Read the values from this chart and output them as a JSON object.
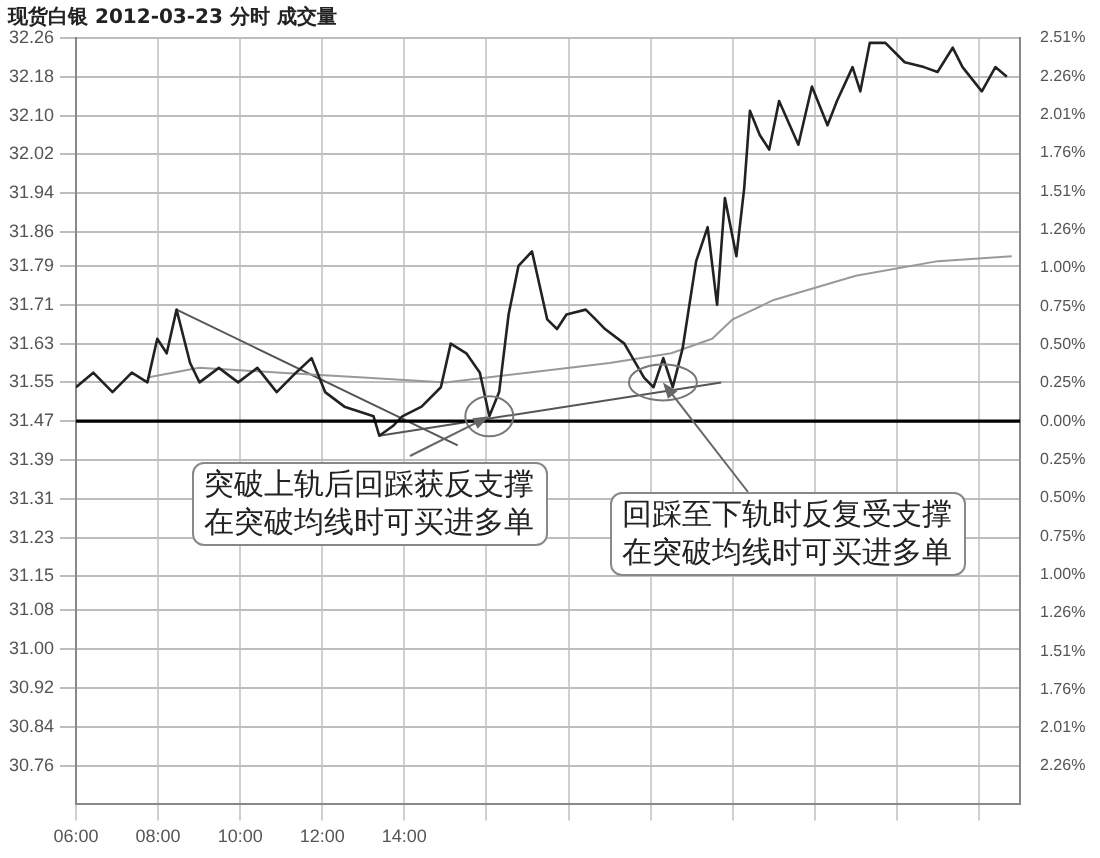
{
  "chart_data": {
    "type": "line",
    "title": "现货白银 2012-03-23 分时 成交量",
    "xlim": [
      6,
      29
    ],
    "xticks": [
      {
        "value": 6,
        "label": "06:00"
      },
      {
        "value": 8,
        "label": "08:00"
      },
      {
        "value": 10,
        "label": "10:00"
      },
      {
        "value": 12,
        "label": "12:00"
      },
      {
        "value": 14,
        "label": "14:00"
      },
      {
        "value": 16,
        "label": null
      },
      {
        "value": 18,
        "label": null
      },
      {
        "value": 20,
        "label": null
      },
      {
        "value": 22,
        "label": null
      },
      {
        "value": 24,
        "label": null
      },
      {
        "value": 26,
        "label": null
      },
      {
        "value": 28,
        "label": null
      }
    ],
    "ylim": [
      30.68,
      32.26
    ],
    "yticks": [
      30.76,
      30.84,
      30.92,
      {
        "value": 31,
        "label": "31.00"
      },
      31.08,
      31.15,
      31.23,
      31.31,
      31.39,
      31.47,
      31.55,
      31.63,
      31.71,
      31.79,
      31.86,
      31.94,
      32.02,
      {
        "value": 32.1,
        "label": "32.10"
      },
      32.18,
      32.26
    ],
    "y2lim": [
      -2.51,
      2.51
    ],
    "y2ticks": [
      {
        "value": 2.51,
        "label": "2.51%"
      },
      {
        "value": 2.259,
        "label": "2.26%"
      },
      {
        "value": 2.008,
        "label": "2.01%"
      },
      {
        "value": 1.757,
        "label": "1.76%"
      },
      {
        "value": 1.506,
        "label": "1.51%"
      },
      {
        "value": 1.255,
        "label": "1.26%"
      },
      {
        "value": 1.004,
        "label": "1.00%"
      },
      {
        "value": 0.753,
        "label": "0.75%"
      },
      {
        "value": 0.502,
        "label": "0.50%"
      },
      {
        "value": 0.251,
        "label": "0.25%"
      },
      {
        "value": 0,
        "label": "0.00%"
      },
      {
        "value": -0.251,
        "label": "0.25%"
      },
      {
        "value": -0.502,
        "label": "0.50%"
      },
      {
        "value": -0.753,
        "label": "0.75%"
      },
      {
        "value": -1.004,
        "label": "1.00%"
      },
      {
        "value": -1.255,
        "label": "1.26%"
      },
      {
        "value": -1.506,
        "label": "1.51%"
      },
      {
        "value": -1.757,
        "label": "1.76%"
      },
      {
        "value": -2.008,
        "label": "2.01%"
      },
      {
        "value": -2.259,
        "label": "2.26%"
      }
    ],
    "grid": true,
    "legend": false,
    "marker": "none",
    "line_style": "solid",
    "ref_lines": [
      {
        "axis": "y",
        "value": 31.47,
        "color": "#000000"
      }
    ],
    "annotations": [
      {
        "text": "突破上轨后回踩获反支撑在突破均线时可买进多单",
        "x": 16.07,
        "y": 31.48
      },
      {
        "text": "回踩至下轨时反复受支撑在突破均线时可买进多单",
        "x": 20.3,
        "y": 31.55
      }
    ],
    "series": [
      {
        "color": "#222222",
        "x": [
          6.0,
          6.42,
          6.89,
          7.36,
          7.74,
          7.98,
          8.21,
          8.45,
          8.78,
          9.01,
          9.48,
          9.95,
          10.42,
          10.89,
          11.36,
          11.74,
          12.07,
          12.54,
          13.25,
          13.39,
          13.72,
          13.95,
          14.42,
          14.89,
          15.13,
          15.51,
          15.84,
          16.07,
          16.31,
          16.54,
          16.78,
          17.11,
          17.48,
          17.72,
          17.95,
          18.42,
          18.66,
          18.89,
          19.36,
          19.84,
          20.07,
          20.31,
          20.54,
          20.78,
          21.11,
          21.39,
          21.62,
          21.81,
          22.09,
          22.28,
          22.42,
          22.66,
          22.89,
          23.13,
          23.6,
          23.93,
          24.31,
          24.54,
          24.92,
          25.11,
          25.34,
          25.72,
          26.19,
          26.66,
          26.99,
          27.36,
          27.6,
          28.07,
          28.4,
          28.68
        ],
        "values": [
          31.54,
          31.57,
          31.53,
          31.57,
          31.55,
          31.64,
          31.61,
          31.7,
          31.59,
          31.55,
          31.58,
          31.55,
          31.58,
          31.53,
          31.57,
          31.6,
          31.53,
          31.5,
          31.48,
          31.44,
          31.46,
          31.48,
          31.5,
          31.54,
          31.63,
          31.61,
          31.57,
          31.48,
          31.53,
          31.69,
          31.79,
          31.82,
          31.68,
          31.66,
          31.69,
          31.7,
          31.68,
          31.66,
          31.63,
          31.56,
          31.54,
          31.6,
          31.54,
          31.62,
          31.8,
          31.87,
          31.71,
          31.93,
          31.81,
          31.95,
          32.11,
          32.06,
          32.03,
          32.13,
          32.04,
          32.16,
          32.08,
          32.13,
          32.2,
          32.15,
          32.25,
          32.25,
          32.21,
          32.2,
          32.19,
          32.24,
          32.2,
          32.15,
          32.2,
          32.18
        ]
      },
      {
        "color": "#999999",
        "x": [
          7.74,
          9,
          11,
          13,
          15,
          17,
          19,
          20.5,
          21.5,
          22,
          23,
          25,
          27,
          28.8
        ],
        "values": [
          31.56,
          31.58,
          31.57,
          31.56,
          31.55,
          31.57,
          31.59,
          31.61,
          31.64,
          31.68,
          31.72,
          31.77,
          31.8,
          31.81
        ]
      },
      {
        "color": "#555555",
        "x": [
          8.45,
          15.3
        ],
        "values": [
          31.7,
          31.42
        ]
      },
      {
        "color": "#555555",
        "x": [
          13.39,
          21.72
        ],
        "values": [
          31.44,
          31.55
        ]
      }
    ]
  }
}
